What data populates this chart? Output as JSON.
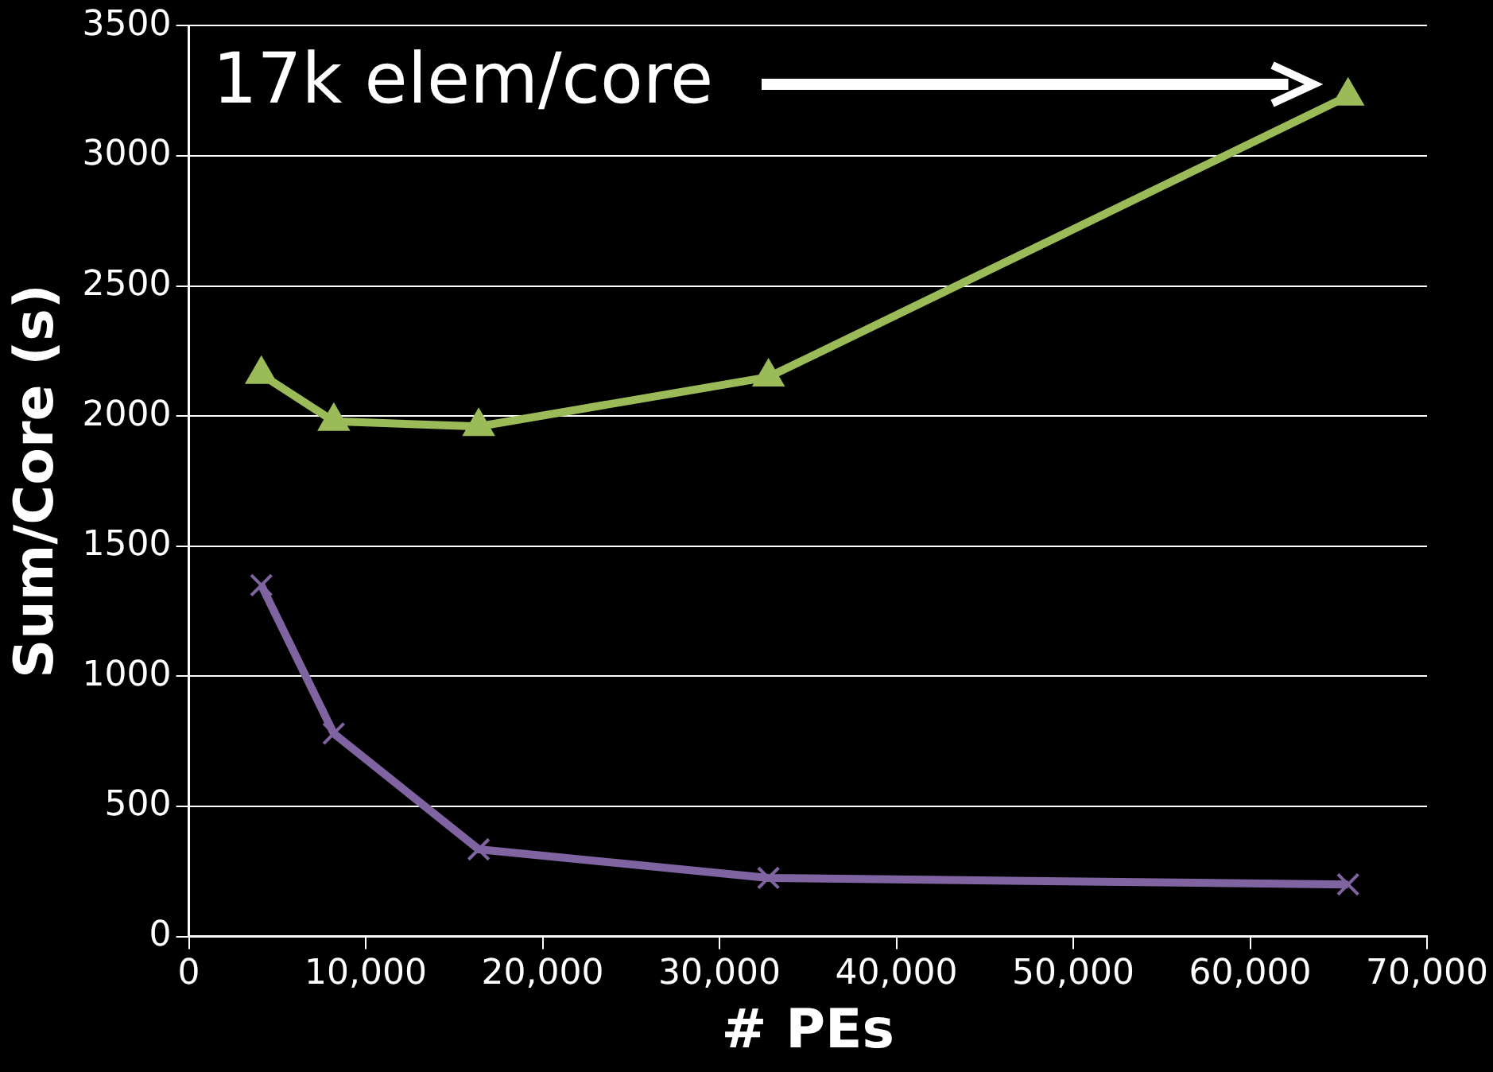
{
  "chart_data": {
    "type": "line",
    "xlabel": "# PEs",
    "ylabel": "Sum/Core (s)",
    "annotations": [
      "17k elem/core"
    ],
    "series": [
      {
        "color": "#9bbb59",
        "marker": "triangle",
        "x": [
          4096,
          8192,
          16384,
          32768,
          65536
        ],
        "values": [
          2160,
          1980,
          1960,
          2150,
          3230
        ]
      },
      {
        "color": "#8064a2",
        "marker": "cross",
        "x": [
          4096,
          8192,
          16384,
          32768,
          65536
        ],
        "values": [
          1350,
          780,
          335,
          225,
          200
        ]
      }
    ],
    "xlim": [
      0,
      70000
    ],
    "xticks": [
      {
        "value": 0,
        "label": "0"
      },
      {
        "value": 10000,
        "label": "10,000"
      },
      {
        "value": 20000,
        "label": "20,000"
      },
      {
        "value": 30000,
        "label": "30,000"
      },
      {
        "value": 40000,
        "label": "40,000"
      },
      {
        "value": 50000,
        "label": "50,000"
      },
      {
        "value": 60000,
        "label": "60,000"
      },
      {
        "value": 70000,
        "label": "70,000"
      }
    ],
    "ylim": [
      0,
      3500
    ],
    "yticks": [
      0,
      500,
      1000,
      1500,
      2000,
      2500,
      3000,
      3500
    ],
    "grid": "y",
    "legend": false
  }
}
